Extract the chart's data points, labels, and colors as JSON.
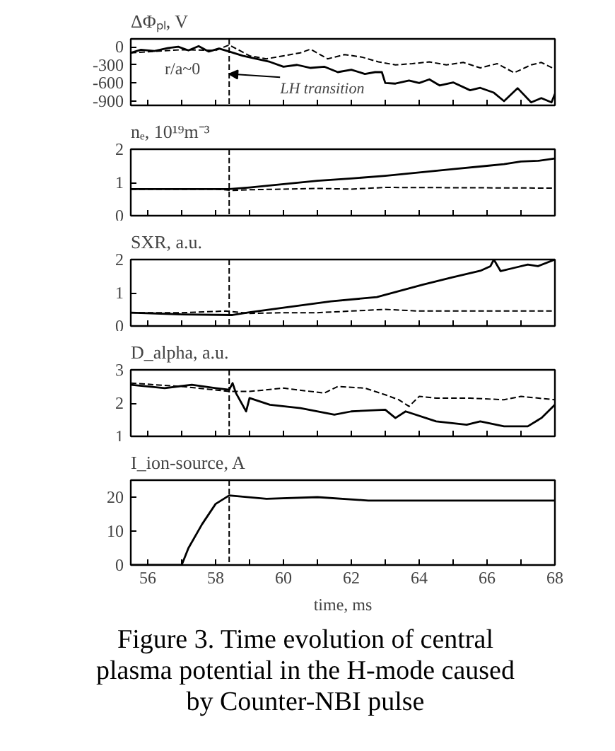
{
  "chart_data": [
    {
      "type": "line",
      "title": "ΔΦₚₗ, V",
      "xlim": [
        55.5,
        68
      ],
      "ylim": [
        -970,
        130
      ],
      "xticks": [
        56,
        {
          "value": 57,
          "label": null
        },
        58,
        {
          "value": 59,
          "label": null
        },
        60,
        {
          "value": 61,
          "label": null
        },
        62,
        {
          "value": 63,
          "label": null
        },
        64,
        {
          "value": 65,
          "label": null
        },
        66,
        {
          "value": 67,
          "label": null
        },
        68
      ],
      "yticks": [
        0,
        -300,
        -600,
        -900
      ],
      "tick_labels": "y",
      "grid": false,
      "marker": "none",
      "ref_lines": [
        {
          "axis": "x",
          "value": 58.4,
          "line_style": "dashed"
        }
      ],
      "annotations": [
        "r/a~0",
        {
          "text": "LH transition",
          "x": 58.4,
          "y": -450
        }
      ],
      "series": [
        {
          "color": "#000000",
          "line_style": "solid",
          "x": [
            55.5,
            55.8,
            56.2,
            56.6,
            56.9,
            57.2,
            57.5,
            57.8,
            58.1,
            58.4,
            58.8,
            59.2,
            59.6,
            60.0,
            60.4,
            60.8,
            61.2,
            61.6,
            62.0,
            62.4,
            62.7,
            62.9,
            63.0,
            63.3,
            63.7,
            64.0,
            64.3,
            64.6,
            65.0,
            65.5,
            65.8,
            66.2,
            66.5,
            66.9,
            67.3,
            67.6,
            67.9,
            68.0
          ],
          "values": [
            -100,
            -50,
            -70,
            -20,
            0,
            -60,
            10,
            -80,
            -30,
            -80,
            -150,
            -200,
            -250,
            -330,
            -300,
            -350,
            -330,
            -420,
            -380,
            -450,
            -420,
            -420,
            -600,
            -610,
            -560,
            -600,
            -540,
            -640,
            -590,
            -720,
            -680,
            -760,
            -900,
            -685,
            -920,
            -850,
            -920,
            -780
          ]
        },
        {
          "color": "#000000",
          "line_style": "dashed",
          "x": [
            55.5,
            57.0,
            58.0,
            58.4,
            59.0,
            59.5,
            60.0,
            60.5,
            60.8,
            61.3,
            61.8,
            62.3,
            62.8,
            63.3,
            63.8,
            64.3,
            64.8,
            65.3,
            65.8,
            66.3,
            66.8,
            67.3,
            67.6,
            68.0
          ],
          "values": [
            -100,
            -50,
            -60,
            30,
            -150,
            -200,
            -150,
            -100,
            -40,
            -200,
            -130,
            -170,
            -250,
            -300,
            -280,
            -250,
            -300,
            -260,
            -350,
            -280,
            -430,
            -300,
            -260,
            -370
          ]
        }
      ]
    },
    {
      "type": "line",
      "title": "nₑ, 10¹⁹m⁻³",
      "xlim": [
        55.5,
        68
      ],
      "ylim": [
        0,
        2
      ],
      "xticks": [
        56,
        {
          "value": 57,
          "label": null
        },
        58,
        {
          "value": 59,
          "label": null
        },
        60,
        {
          "value": 61,
          "label": null
        },
        62,
        {
          "value": 63,
          "label": null
        },
        64,
        {
          "value": 65,
          "label": null
        },
        66,
        {
          "value": 67,
          "label": null
        },
        68
      ],
      "yticks": [
        0,
        1,
        2
      ],
      "tick_labels": "y",
      "grid": false,
      "marker": "none",
      "ref_lines": [
        {
          "axis": "x",
          "value": 58.4,
          "line_style": "dashed"
        }
      ],
      "series": [
        {
          "color": "#000000",
          "line_style": "solid",
          "x": [
            55.5,
            57.0,
            58.4,
            59.0,
            60.0,
            61.0,
            62.0,
            63.0,
            64.0,
            65.0,
            66.0,
            66.5,
            67.0,
            67.5,
            68.0
          ],
          "values": [
            0.8,
            0.8,
            0.8,
            0.85,
            0.95,
            1.05,
            1.12,
            1.2,
            1.3,
            1.4,
            1.5,
            1.55,
            1.63,
            1.65,
            1.72
          ]
        },
        {
          "color": "#000000",
          "line_style": "dashed",
          "x": [
            55.5,
            58.0,
            58.5,
            59.0,
            60.0,
            61.0,
            62.0,
            63.0,
            68.0
          ],
          "values": [
            0.8,
            0.8,
            0.76,
            0.78,
            0.8,
            0.82,
            0.8,
            0.85,
            0.83
          ]
        }
      ]
    },
    {
      "type": "line",
      "title": "SXR, a.u.",
      "xlim": [
        55.5,
        68
      ],
      "ylim": [
        0,
        2
      ],
      "xticks": [
        56,
        {
          "value": 57,
          "label": null
        },
        58,
        {
          "value": 59,
          "label": null
        },
        60,
        {
          "value": 61,
          "label": null
        },
        62,
        {
          "value": 63,
          "label": null
        },
        64,
        {
          "value": 65,
          "label": null
        },
        66,
        {
          "value": 67,
          "label": null
        },
        68
      ],
      "yticks": [
        0,
        1,
        2
      ],
      "tick_labels": "y",
      "grid": false,
      "marker": "none",
      "ref_lines": [
        {
          "axis": "x",
          "value": 58.4,
          "line_style": "dashed"
        }
      ],
      "series": [
        {
          "color": "#000000",
          "line_style": "solid",
          "x": [
            55.5,
            57.0,
            58.5,
            59.0,
            60.0,
            61.4,
            62.75,
            64.1,
            64.96,
            65.8,
            66.1,
            66.2,
            66.4,
            66.8,
            67.2,
            67.5,
            68.0
          ],
          "values": [
            0.4,
            0.35,
            0.33,
            0.41,
            0.55,
            0.74,
            0.87,
            1.24,
            1.46,
            1.66,
            1.8,
            2.0,
            1.65,
            1.75,
            1.85,
            1.8,
            2.0
          ]
        },
        {
          "color": "#000000",
          "line_style": "dashed",
          "x": [
            55.5,
            57.0,
            58.3,
            59.0,
            60.0,
            61.0,
            62.0,
            63.0,
            64.0,
            68.0
          ],
          "values": [
            0.4,
            0.4,
            0.45,
            0.38,
            0.4,
            0.4,
            0.45,
            0.5,
            0.45,
            0.45
          ]
        }
      ]
    },
    {
      "type": "line",
      "title": "D_alpha, a.u.",
      "xlim": [
        55.5,
        68
      ],
      "ylim": [
        1,
        3
      ],
      "xticks": [
        56,
        {
          "value": 57,
          "label": null
        },
        58,
        {
          "value": 59,
          "label": null
        },
        60,
        {
          "value": 61,
          "label": null
        },
        62,
        {
          "value": 63,
          "label": null
        },
        64,
        {
          "value": 65,
          "label": null
        },
        66,
        {
          "value": 67,
          "label": null
        },
        68
      ],
      "yticks": [
        1,
        2,
        3
      ],
      "tick_labels": "y",
      "grid": false,
      "marker": "none",
      "ref_lines": [
        {
          "axis": "x",
          "value": 58.4,
          "line_style": "dashed"
        }
      ],
      "series": [
        {
          "color": "#000000",
          "line_style": "solid",
          "x": [
            55.5,
            56.5,
            57.3,
            58.0,
            58.4,
            58.5,
            58.6,
            58.9,
            59.0,
            59.6,
            60.5,
            61.5,
            62.0,
            63.0,
            63.3,
            63.6,
            64.5,
            65.4,
            65.8,
            66.5,
            67.2,
            67.6,
            68.0
          ],
          "values": [
            2.55,
            2.45,
            2.55,
            2.45,
            2.4,
            2.6,
            2.3,
            1.75,
            2.15,
            1.95,
            1.85,
            1.65,
            1.75,
            1.8,
            1.55,
            1.75,
            1.45,
            1.35,
            1.45,
            1.3,
            1.3,
            1.55,
            1.95
          ]
        },
        {
          "color": "#000000",
          "line_style": "dashed",
          "x": [
            55.5,
            57.0,
            58.4,
            59.0,
            60.0,
            61.2,
            61.6,
            62.4,
            63.0,
            63.4,
            63.7,
            64.0,
            64.5,
            65.5,
            66.5,
            67.0,
            68.0
          ],
          "values": [
            2.6,
            2.5,
            2.35,
            2.35,
            2.45,
            2.3,
            2.5,
            2.45,
            2.25,
            2.1,
            1.9,
            2.2,
            2.15,
            2.15,
            2.1,
            2.2,
            2.1
          ]
        }
      ]
    },
    {
      "type": "line",
      "title": "I_ion-source, A",
      "xlabel": "time, ms",
      "xlim": [
        55.5,
        68
      ],
      "ylim": [
        0,
        25
      ],
      "xticks": [
        56,
        {
          "value": 57,
          "label": null
        },
        58,
        {
          "value": 59,
          "label": null
        },
        60,
        {
          "value": 61,
          "label": null
        },
        62,
        {
          "value": 63,
          "label": null
        },
        64,
        {
          "value": 65,
          "label": null
        },
        66,
        {
          "value": 67,
          "label": null
        },
        68
      ],
      "yticks": [
        0,
        10,
        20
      ],
      "grid": false,
      "marker": "none",
      "ref_lines": [
        {
          "axis": "x",
          "value": 58.4,
          "line_style": "dashed"
        }
      ],
      "annotations": [
        "Figure 3. Time evolution of central plasma potential in the H-mode caused by Counter-NBI pulse"
      ],
      "series": [
        {
          "color": "#000000",
          "line_style": "solid",
          "x": [
            55.5,
            57.0,
            57.2,
            57.6,
            58.0,
            58.4,
            59.5,
            61.0,
            62.5,
            68.0
          ],
          "values": [
            0,
            0,
            5,
            12,
            18,
            20.5,
            19.5,
            20,
            19,
            19
          ]
        }
      ]
    }
  ]
}
